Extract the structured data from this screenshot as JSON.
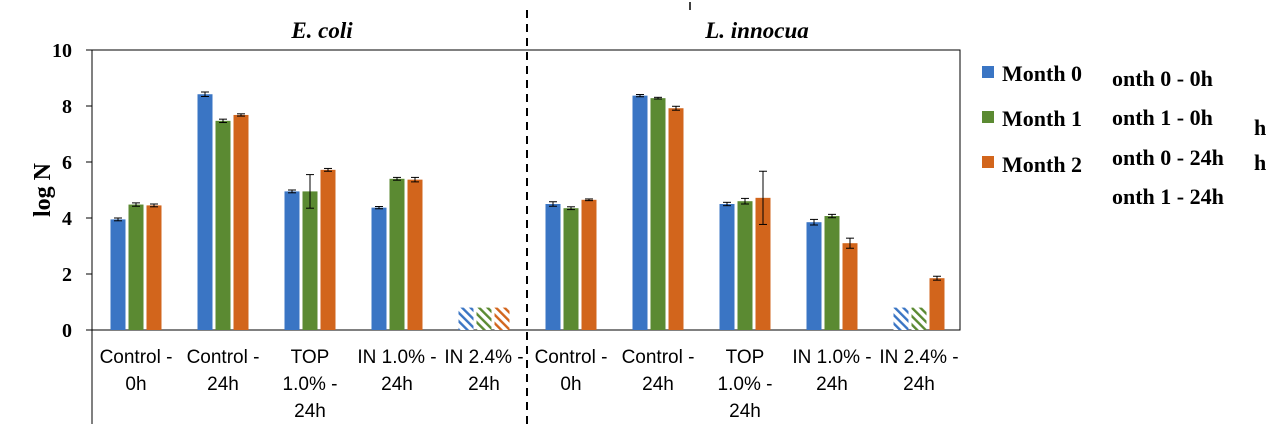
{
  "chart_data": {
    "type": "bar",
    "ylabel": "log N",
    "ylim": [
      0,
      10
    ],
    "yticks": [
      "0",
      "2",
      "4",
      "6",
      "8",
      "10"
    ],
    "grid": false,
    "legend_position": "right",
    "colors": {
      "Month 0": "#3a75c4",
      "Month 1": "#5b8a32",
      "Month 2": "#d2651c"
    },
    "series_names": [
      "Month 0",
      "Month 1",
      "Month 2"
    ],
    "extra_legend_text": [
      "onth 0 - 0h",
      "onth 1 - 0h",
      "onth 0 - 24h",
      "onth 1 - 24h",
      "h",
      "h"
    ],
    "panels": [
      {
        "title": "E. coli",
        "groups": [
          {
            "label": "Control - 0h",
            "values": [
              3.95,
              4.48,
              4.45
            ],
            "errors": [
              0.05,
              0.06,
              0.05
            ],
            "hatched": false
          },
          {
            "label": "Control - 24h",
            "values": [
              8.42,
              7.47,
              7.68
            ],
            "errors": [
              0.08,
              0.06,
              0.04
            ],
            "hatched": false
          },
          {
            "label": "TOP 1.0% - 24h",
            "values": [
              4.95,
              4.95,
              5.72
            ],
            "errors": [
              0.05,
              0.6,
              0.05
            ],
            "hatched": false
          },
          {
            "label": "IN 1.0% - 24h",
            "values": [
              4.37,
              5.4,
              5.37
            ],
            "errors": [
              0.04,
              0.05,
              0.08
            ],
            "hatched": false
          },
          {
            "label": "IN 2.4% - 24h",
            "values": [
              0.8,
              0.8,
              0.8
            ],
            "errors": [
              0,
              0,
              0
            ],
            "hatched": true
          }
        ]
      },
      {
        "title": "L. innocua",
        "groups": [
          {
            "label": "Control - 0h",
            "values": [
              4.5,
              4.35,
              4.65
            ],
            "errors": [
              0.08,
              0.05,
              0.03
            ],
            "hatched": false
          },
          {
            "label": "Control - 24h",
            "values": [
              8.37,
              8.28,
              7.92
            ],
            "errors": [
              0.04,
              0.03,
              0.07
            ],
            "hatched": false
          },
          {
            "label": "TOP 1.0% - 24h",
            "values": [
              4.5,
              4.6,
              4.72
            ],
            "errors": [
              0.06,
              0.1,
              0.95
            ],
            "hatched": false
          },
          {
            "label": "IN 1.0% - 24h",
            "values": [
              3.85,
              4.07,
              3.1
            ],
            "errors": [
              0.1,
              0.06,
              0.18
            ],
            "hatched": false
          },
          {
            "label": "IN 2.4% - 24h",
            "values": [
              0.8,
              0.8,
              1.85
            ],
            "errors": [
              0,
              0,
              0.07
            ],
            "hatched": [
              true,
              true,
              false
            ]
          }
        ]
      }
    ]
  }
}
